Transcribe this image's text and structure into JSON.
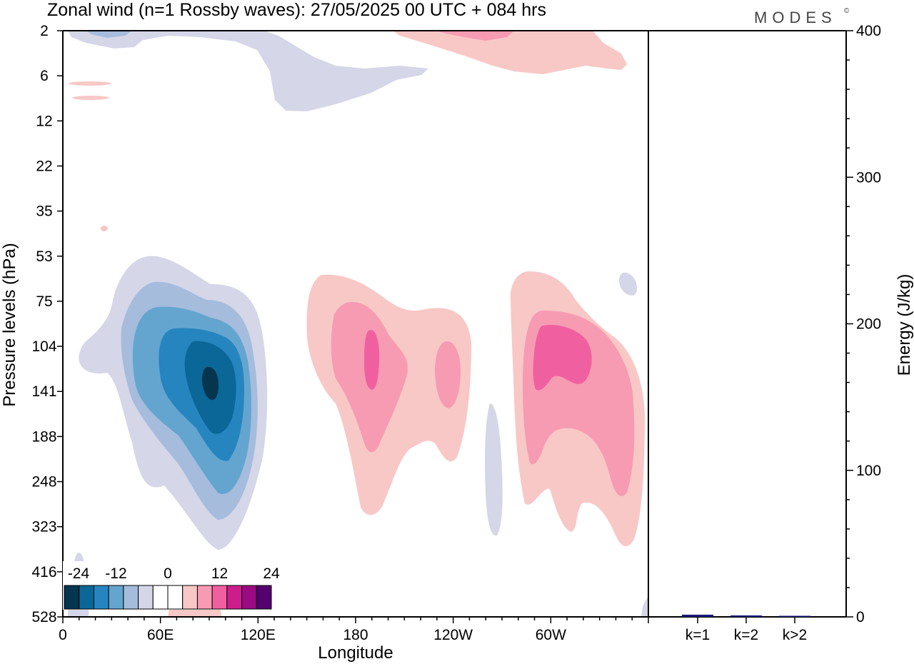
{
  "title": "Zonal wind (n=1 Rossby waves):  27/05/2025  00 UTC  + 084 hrs",
  "brand": "MODES",
  "brand_mark": "©",
  "chart_data": [
    {
      "type": "heatmap",
      "xlabel": "Longitude",
      "ylabel": "Pressure levels (hPa)",
      "x_ticks": [
        "0",
        "60E",
        "120E",
        "180",
        "120W",
        "60W"
      ],
      "y_ticks": [
        "2",
        "6",
        "12",
        "22",
        "35",
        "53",
        "75",
        "104",
        "141",
        "188",
        "248",
        "323",
        "416",
        "528"
      ],
      "xlim_deg_east": [
        0,
        360
      ],
      "y_scale": "log",
      "colorbar": {
        "tick_labels": [
          "-24",
          "-12",
          "0",
          "12",
          "24"
        ],
        "colors": [
          "#05354f",
          "#0a6797",
          "#2685bf",
          "#64a5d0",
          "#a5bcdc",
          "#d5d6e8",
          "#ffffff",
          "#ffffff",
          "#f8c8c6",
          "#f79bb2",
          "#f060a0",
          "#cd1d8c",
          "#9b0a83",
          "#55006f"
        ]
      },
      "features": [
        {
          "sign": "negative",
          "center_lon": 90,
          "center_hPa": 141,
          "peak": -24,
          "extent_lon": [
            10,
            125
          ],
          "extent_hPa": [
            53,
            416
          ]
        },
        {
          "sign": "positive",
          "center_lon": 190,
          "center_hPa": 122,
          "peak": 15,
          "extent_lon": [
            150,
            250
          ],
          "extent_hPa": [
            75,
            323
          ]
        },
        {
          "sign": "positive",
          "center_lon": 305,
          "center_hPa": 122,
          "peak": 15,
          "extent_lon": [
            275,
            360
          ],
          "extent_hPa": [
            53,
            416
          ]
        },
        {
          "sign": "negative",
          "center_lon": 170,
          "center_hPa": 6,
          "peak": -5,
          "extent_lon": [
            5,
            230
          ],
          "extent_hPa": [
            2,
            9
          ]
        },
        {
          "sign": "positive",
          "center_lon": 260,
          "center_hPa": 3,
          "peak": 10,
          "extent_lon": [
            200,
            345
          ],
          "extent_hPa": [
            2,
            6
          ]
        },
        {
          "sign": "negative",
          "center_lon": 265,
          "center_hPa": 248,
          "peak": -4,
          "extent_lon": [
            260,
            270
          ],
          "extent_hPa": [
            141,
            323
          ]
        }
      ]
    },
    {
      "type": "bar",
      "ylabel": "Energy (J/kg)",
      "categories": [
        "k=1",
        "k=2",
        "k>2"
      ],
      "values": [
        1.5,
        1.0,
        0.5
      ],
      "ylim": [
        0,
        400
      ],
      "y_ticks": [
        "0",
        "100",
        "200",
        "300",
        "400"
      ],
      "bar_color": "#1a1a7a"
    }
  ]
}
